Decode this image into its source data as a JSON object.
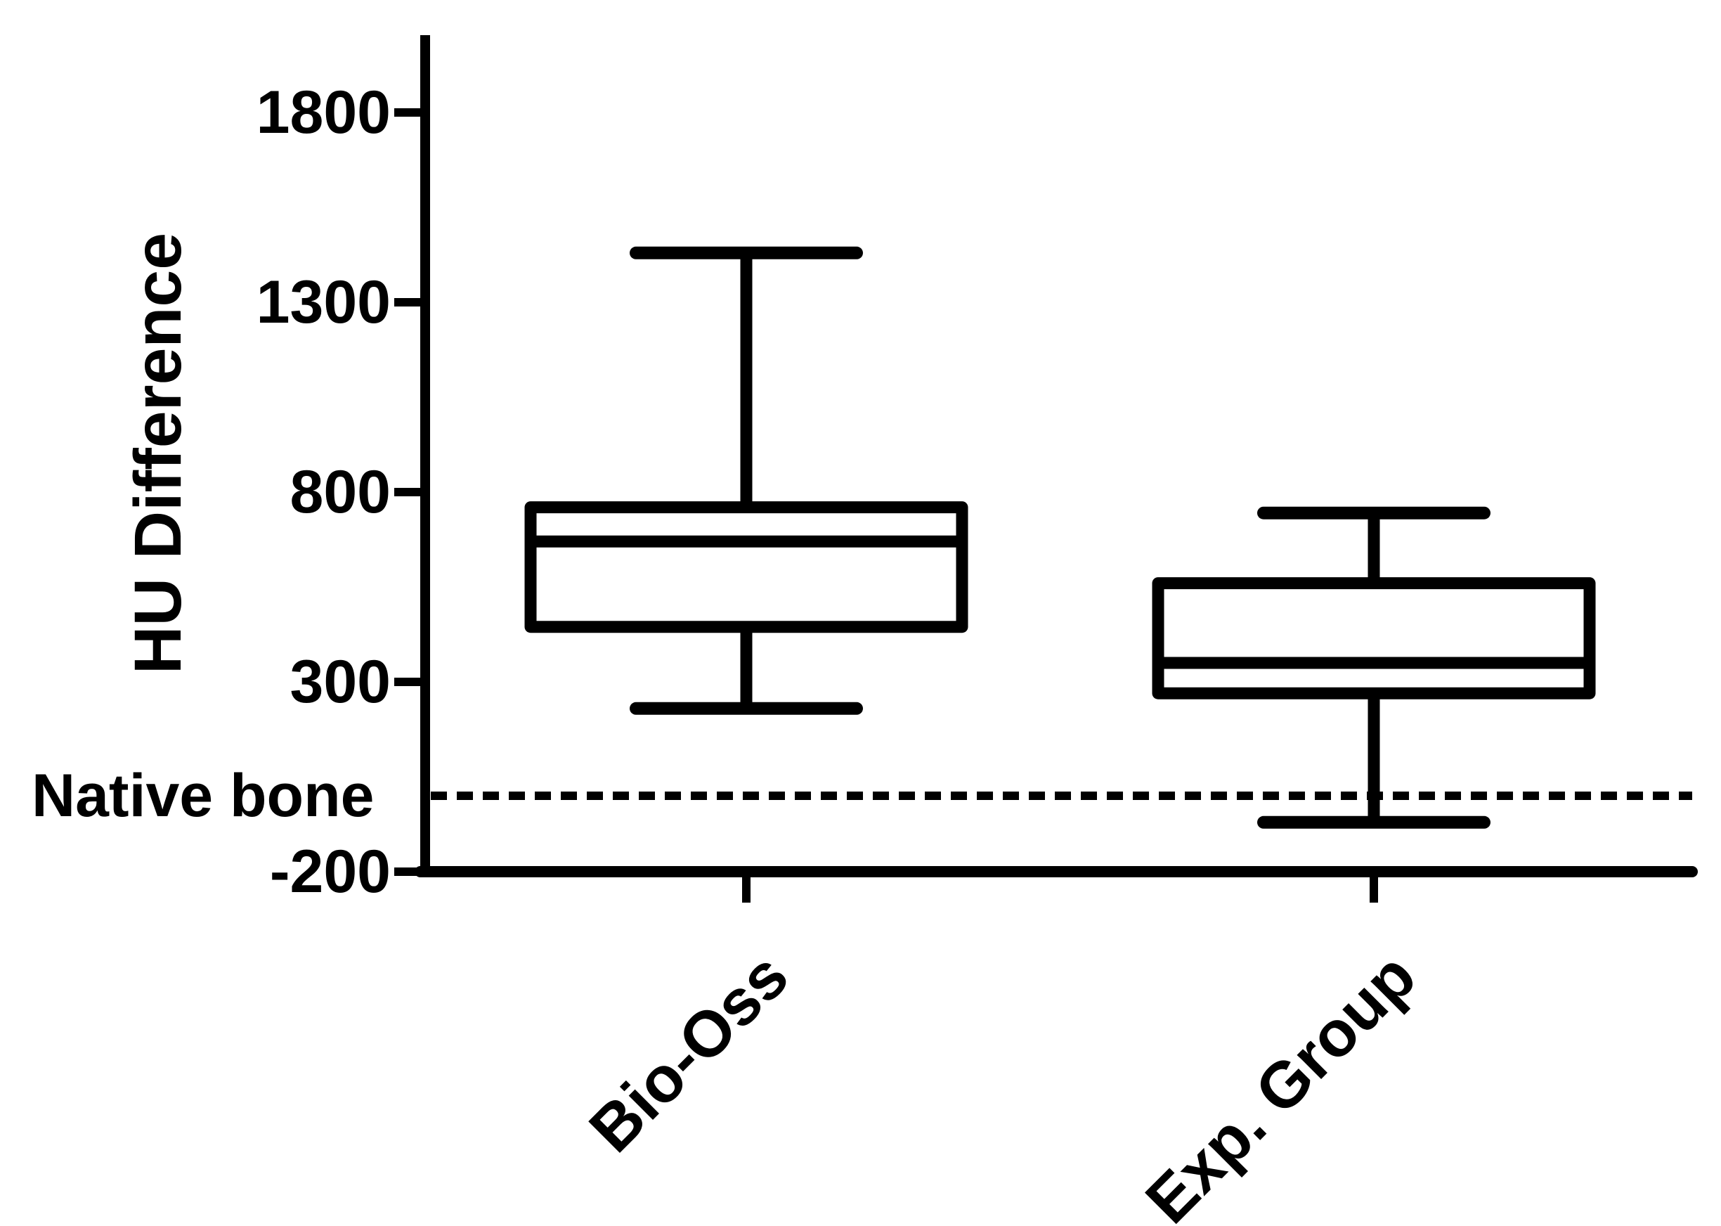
{
  "figure": {
    "background_color": "#ffffff",
    "ink_color": "#000000"
  },
  "chart_data": {
    "type": "box",
    "title": "",
    "xlabel": "",
    "ylabel": "HU Difference",
    "categories": [
      "Bio-Oss",
      "Exp. Group"
    ],
    "yticks": [
      1800,
      1300,
      800,
      300,
      -200
    ],
    "ytick_labels": [
      "1800",
      "1300",
      "800",
      "300",
      "-200"
    ],
    "ylim": [
      -200,
      1975
    ],
    "grid": false,
    "legend": "none",
    "series": [
      {
        "name": "Bio-Oss",
        "min": 230,
        "q1": 445,
        "median": 670,
        "q3": 760,
        "max": 1430
      },
      {
        "name": "Exp. Group",
        "min": -70,
        "q1": 270,
        "median": 350,
        "q3": 560,
        "max": 745
      }
    ],
    "reference_line": {
      "label": "Native bone",
      "value": 0,
      "style": "dashed"
    }
  }
}
